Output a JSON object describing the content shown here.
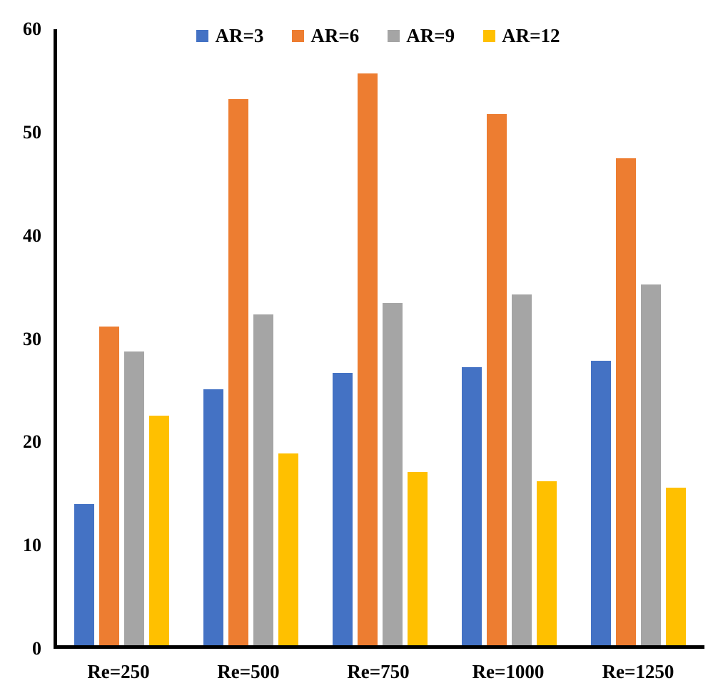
{
  "chart_data": {
    "type": "bar",
    "title": "",
    "xlabel": "",
    "ylabel": "",
    "categories": [
      "Re=250",
      "Re=500",
      "Re=750",
      "Re=1000",
      "Re=1250"
    ],
    "series": [
      {
        "name": "AR=3",
        "color": "#4472C4",
        "values": [
          14.0,
          25.1,
          26.7,
          27.3,
          27.9
        ]
      },
      {
        "name": "AR=6",
        "color": "#ED7D31",
        "values": [
          31.2,
          53.2,
          55.7,
          51.8,
          47.5
        ]
      },
      {
        "name": "AR=9",
        "color": "#A5A5A5",
        "values": [
          28.8,
          32.4,
          33.5,
          34.3,
          35.3
        ]
      },
      {
        "name": "AR=12",
        "color": "#FFC000",
        "values": [
          22.6,
          18.9,
          17.1,
          16.2,
          15.6
        ]
      }
    ],
    "ylim": [
      0,
      60
    ],
    "yticks": [
      0,
      10,
      20,
      30,
      40,
      50,
      60
    ],
    "grid": false,
    "legend_position": "top-center",
    "axis_color": "#000000",
    "text_color": "#000000"
  }
}
